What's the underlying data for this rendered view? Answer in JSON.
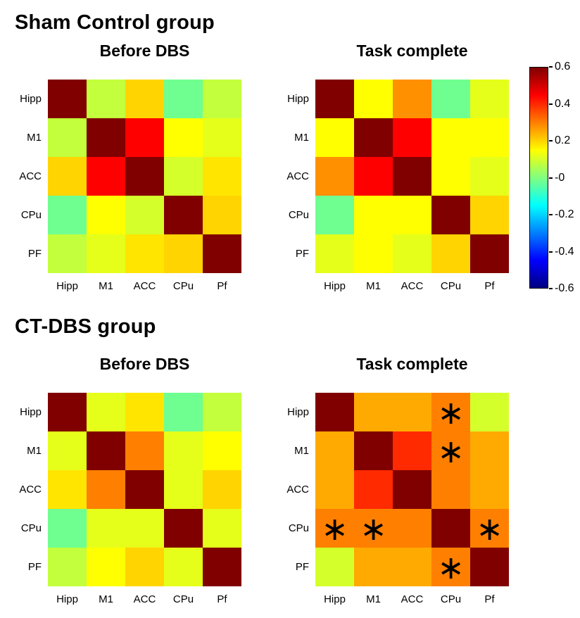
{
  "figure": {
    "background": "#ffffff"
  },
  "sections": [
    {
      "title": "Sham Control group"
    },
    {
      "title": "CT-DBS group"
    }
  ],
  "significance_marker": "∗",
  "colorbar": {
    "colormap": "jet",
    "vmin": -0.6,
    "vmax": 0.6,
    "ticks": [
      "0.6",
      "0.4",
      "0.2",
      "-0",
      "-0.2",
      "-0.4",
      "-0.6"
    ]
  },
  "chart_data": [
    {
      "type": "heatmap",
      "group": "Sham Control group",
      "title": "Before DBS",
      "row_labels": [
        "Hipp",
        "M1",
        "ACC",
        "CPu",
        "PF"
      ],
      "col_labels": [
        "Hipp",
        "M1",
        "ACC",
        "CPu",
        "Pf"
      ],
      "vmin": -0.6,
      "vmax": 0.6,
      "values": [
        [
          0.6,
          0.08,
          0.2,
          -0.02,
          0.08
        ],
        [
          0.08,
          0.6,
          0.45,
          0.15,
          0.12
        ],
        [
          0.2,
          0.45,
          0.6,
          0.1,
          0.18
        ],
        [
          -0.02,
          0.15,
          0.1,
          0.6,
          0.2
        ],
        [
          0.08,
          0.12,
          0.18,
          0.2,
          0.6
        ]
      ],
      "significant": []
    },
    {
      "type": "heatmap",
      "group": "Sham Control group",
      "title": "Task complete",
      "row_labels": [
        "Hipp",
        "M1",
        "ACC",
        "CPu",
        "PF"
      ],
      "col_labels": [
        "Hipp",
        "M1",
        "ACC",
        "CPu",
        "Pf"
      ],
      "vmin": -0.6,
      "vmax": 0.6,
      "values": [
        [
          0.6,
          0.15,
          0.28,
          -0.02,
          0.12
        ],
        [
          0.15,
          0.6,
          0.45,
          0.15,
          0.15
        ],
        [
          0.28,
          0.45,
          0.6,
          0.15,
          0.12
        ],
        [
          -0.02,
          0.15,
          0.15,
          0.6,
          0.2
        ],
        [
          0.12,
          0.15,
          0.12,
          0.2,
          0.6
        ]
      ],
      "significant": []
    },
    {
      "type": "heatmap",
      "group": "CT-DBS group",
      "title": "Before DBS",
      "row_labels": [
        "Hipp",
        "M1",
        "ACC",
        "CPu",
        "PF"
      ],
      "col_labels": [
        "Hipp",
        "M1",
        "ACC",
        "CPu",
        "Pf"
      ],
      "vmin": -0.6,
      "vmax": 0.6,
      "values": [
        [
          0.6,
          0.12,
          0.18,
          -0.02,
          0.08
        ],
        [
          0.12,
          0.6,
          0.3,
          0.12,
          0.15
        ],
        [
          0.18,
          0.3,
          0.6,
          0.12,
          0.2
        ],
        [
          -0.02,
          0.12,
          0.12,
          0.6,
          0.12
        ],
        [
          0.08,
          0.15,
          0.2,
          0.12,
          0.6
        ]
      ],
      "significant": []
    },
    {
      "type": "heatmap",
      "group": "CT-DBS group",
      "title": "Task complete",
      "row_labels": [
        "Hipp",
        "M1",
        "ACC",
        "CPu",
        "PF"
      ],
      "col_labels": [
        "Hipp",
        "M1",
        "ACC",
        "CPu",
        "Pf"
      ],
      "vmin": -0.6,
      "vmax": 0.6,
      "values": [
        [
          0.6,
          0.25,
          0.25,
          0.3,
          0.1
        ],
        [
          0.25,
          0.6,
          0.4,
          0.3,
          0.25
        ],
        [
          0.25,
          0.4,
          0.6,
          0.3,
          0.25
        ],
        [
          0.3,
          0.3,
          0.3,
          0.6,
          0.3
        ],
        [
          0.1,
          0.25,
          0.25,
          0.3,
          0.6
        ]
      ],
      "significant": [
        [
          0,
          3
        ],
        [
          1,
          3
        ],
        [
          3,
          0
        ],
        [
          3,
          1
        ],
        [
          3,
          4
        ],
        [
          4,
          3
        ]
      ]
    }
  ]
}
